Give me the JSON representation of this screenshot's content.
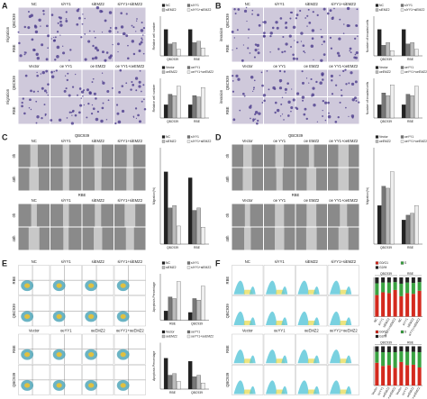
{
  "panels": [
    {
      "label": "A",
      "kind": "transwell",
      "blocks": [
        {
          "columns": [
            "NC",
            "siYY1",
            "siEMZ2",
            "siYY1+siEMZ2"
          ],
          "rows": [
            "QBC939",
            "RBE"
          ],
          "side": "migration"
        },
        {
          "columns": [
            "Vector",
            "oe YY1",
            "oe EMZ2",
            "oe YY1+oeEMZ2"
          ],
          "rows": [
            "QBC939",
            "RBE"
          ],
          "side": "migration"
        }
      ],
      "charts": [
        {
          "type": "bar",
          "ylabel": "Relative cell number",
          "categories": [
            "QBC939",
            "RBE"
          ],
          "ylim": [
            0,
            1.5
          ],
          "series": [
            {
              "name": "NC",
              "color": "#222222",
              "values": [
                1,
                1
              ]
            },
            {
              "name": "siYY1",
              "color": "#777777",
              "values": [
                0.45,
                0.5
              ]
            },
            {
              "name": "siEMZ2",
              "color": "#bbbbbb",
              "values": [
                0.5,
                0.55
              ]
            },
            {
              "name": "siYY1+siEMZ2",
              "color": "#eeeeee",
              "values": [
                0.25,
                0.3
              ]
            }
          ]
        },
        {
          "type": "bar",
          "ylabel": "Relative cell number",
          "categories": [
            "QBC939",
            "RBE"
          ],
          "ylim": [
            0,
            3
          ],
          "series": [
            {
              "name": "Vector",
              "color": "#222222",
              "values": [
                1,
                1
              ]
            },
            {
              "name": "oeYY1",
              "color": "#777777",
              "values": [
                1.8,
                1.7
              ]
            },
            {
              "name": "oeEMZ2",
              "color": "#bbbbbb",
              "values": [
                1.7,
                1.6
              ]
            },
            {
              "name": "oeYY1+oeEMZ2",
              "color": "#eeeeee",
              "values": [
                2.4,
                2.3
              ]
            }
          ]
        }
      ]
    },
    {
      "label": "B",
      "kind": "transwell",
      "blocks": [
        {
          "columns": [
            "NC",
            "siYY1",
            "siEMZ2",
            "siYY1+siEMZ2"
          ],
          "rows": [
            "QBC939",
            "RBE"
          ],
          "side": "invasion"
        },
        {
          "columns": [
            "Vector",
            "oe YY1",
            "oe EMZ2",
            "oe YY1+oeEMZ2"
          ],
          "rows": [
            "QBC939",
            "RBE"
          ],
          "side": "invasion"
        }
      ],
      "charts": [
        {
          "type": "bar",
          "ylabel": "Number of invaded cells",
          "categories": [
            "QBC939",
            "RBE"
          ],
          "ylim": [
            0,
            1.5
          ],
          "series": [
            {
              "name": "NC",
              "color": "#222222",
              "values": [
                1,
                1
              ]
            },
            {
              "name": "siYY1",
              "color": "#777777",
              "values": [
                0.4,
                0.45
              ]
            },
            {
              "name": "siEMZ2",
              "color": "#bbbbbb",
              "values": [
                0.5,
                0.5
              ]
            },
            {
              "name": "siYY1+siEMZ2",
              "color": "#eeeeee",
              "values": [
                0.2,
                0.25
              ]
            }
          ]
        },
        {
          "type": "bar",
          "ylabel": "Number of invaded cells",
          "categories": [
            "QBC939",
            "RBE"
          ],
          "ylim": [
            0,
            3
          ],
          "series": [
            {
              "name": "Vector",
              "color": "#222222",
              "values": [
                1,
                1
              ]
            },
            {
              "name": "oeYY1",
              "color": "#777777",
              "values": [
                1.9,
                1.8
              ]
            },
            {
              "name": "oeEMZ2",
              "color": "#bbbbbb",
              "values": [
                1.7,
                1.7
              ]
            },
            {
              "name": "oeYY1+oeEMZ2",
              "color": "#eeeeee",
              "values": [
                2.5,
                2.4
              ]
            }
          ]
        }
      ]
    },
    {
      "label": "C",
      "kind": "scratch",
      "blocks": [
        {
          "title": "QBC939",
          "columns": [
            "NC",
            "siYY1",
            "siEMZ2",
            "siYY1+siEMZ2"
          ],
          "rows": [
            "0h",
            "48h"
          ]
        },
        {
          "title": "RBE",
          "columns": [
            "NC",
            "siYY1",
            "siEMZ2",
            "siYY1+siEMZ2"
          ],
          "rows": [
            "0h",
            "48h"
          ]
        }
      ],
      "charts": [
        {
          "type": "bar",
          "ylabel": "Migration(%)",
          "categories": [
            "QBC939",
            "RBE"
          ],
          "ylim": [
            0,
            80
          ],
          "series": [
            {
              "name": "NC",
              "color": "#222222",
              "values": [
                60,
                55
              ]
            },
            {
              "name": "siYY1",
              "color": "#777777",
              "values": [
                30,
                28
              ]
            },
            {
              "name": "siEMZ2",
              "color": "#bbbbbb",
              "values": [
                32,
                30
              ]
            },
            {
              "name": "siYY1+siEMZ2",
              "color": "#eeeeee",
              "values": [
                15,
                14
              ]
            }
          ]
        }
      ]
    },
    {
      "label": "D",
      "kind": "scratch",
      "blocks": [
        {
          "title": "QBC939",
          "columns": [
            "Vector",
            "oe YY1",
            "oe EMZ2",
            "oe YY1+oeEMZ2"
          ],
          "rows": [
            "0h",
            "48h"
          ]
        },
        {
          "title": "RBE",
          "columns": [
            "Vector",
            "oe YY1",
            "oe EMZ2",
            "oe YY1+oeEMZ2"
          ],
          "rows": [
            "0h",
            "48h"
          ]
        }
      ],
      "charts": [
        {
          "type": "bar",
          "ylabel": "Migration(%)",
          "categories": [
            "QBC939",
            "RBE"
          ],
          "ylim": [
            0,
            100
          ],
          "series": [
            {
              "name": "Vector",
              "color": "#222222",
              "values": [
                40,
                25
              ]
            },
            {
              "name": "oeYY1",
              "color": "#777777",
              "values": [
                60,
                30
              ]
            },
            {
              "name": "oeEMZ2",
              "color": "#bbbbbb",
              "values": [
                58,
                32
              ]
            },
            {
              "name": "oeYY1+oeEMZ2",
              "color": "#eeeeee",
              "values": [
                75,
                40
              ]
            }
          ]
        }
      ]
    },
    {
      "label": "E",
      "kind": "flow",
      "blocks": [
        {
          "columns": [
            "NC",
            "siYY1",
            "siEMZ2",
            "siYY1+siEMZ2"
          ],
          "rows": [
            "RBE",
            "QBC939"
          ]
        },
        {
          "columns": [
            "Vector",
            "oeYY1",
            "oeEMZ2",
            "oeYY1+oeEMZ2"
          ],
          "rows": [
            "RBE",
            "QBC939"
          ]
        }
      ],
      "charts": [
        {
          "type": "bar",
          "ylabel": "Apoptosis Percentage",
          "categories": [
            "RBE",
            "QBC939"
          ],
          "ylim": [
            0,
            30
          ],
          "series": [
            {
              "name": "NC",
              "color": "#222222",
              "values": [
                6,
                5
              ]
            },
            {
              "name": "siYY1",
              "color": "#777777",
              "values": [
                15,
                14
              ]
            },
            {
              "name": "siEMZ2",
              "color": "#bbbbbb",
              "values": [
                14,
                13
              ]
            },
            {
              "name": "siYY1+siEMZ2",
              "color": "#eeeeee",
              "values": [
                25,
                22
              ]
            }
          ]
        },
        {
          "type": "bar",
          "ylabel": "Apoptosis Percentage",
          "categories": [
            "RBE",
            "QBC939"
          ],
          "ylim": [
            0,
            30
          ],
          "series": [
            {
              "name": "Vector",
              "color": "#222222",
              "values": [
                20,
                18
              ]
            },
            {
              "name": "oeYY1",
              "color": "#777777",
              "values": [
                9,
                8
              ]
            },
            {
              "name": "oeEMZ2",
              "color": "#bbbbbb",
              "values": [
                10,
                9
              ]
            },
            {
              "name": "oeYY1+oeEMZ2",
              "color": "#eeeeee",
              "values": [
                5,
                4
              ]
            }
          ]
        }
      ]
    },
    {
      "label": "F",
      "kind": "hist",
      "blocks": [
        {
          "columns": [
            "NC",
            "siYY1",
            "siEMZ2",
            "siYY1+siEMZ2"
          ],
          "rows": [
            "RBE",
            "QBC939"
          ]
        },
        {
          "columns": [
            "Vector",
            "oeYY1",
            "oeEMZ2",
            "oeYY1+oeEMZ2"
          ],
          "rows": [
            "RBE",
            "QBC939"
          ]
        }
      ],
      "charts": [
        {
          "type": "stacked_bar",
          "groups": [
            "QBC939",
            "RBE"
          ],
          "categories": [
            "NC",
            "siYY1",
            "siEMZ2",
            "siYY1+siEMZ2",
            "NC",
            "siYY1",
            "siEMZ2",
            "siYY1+siEMZ2"
          ],
          "ylim": [
            0,
            100
          ],
          "series": [
            {
              "name": "G0/G1",
              "color": "#d42a1e",
              "values": [
                55,
                62,
                60,
                68,
                52,
                60,
                58,
                66
              ]
            },
            {
              "name": "S",
              "color": "#3aa241",
              "values": [
                30,
                25,
                27,
                20,
                32,
                27,
                28,
                22
              ]
            },
            {
              "name": "G2/M",
              "color": "#222222",
              "values": [
                15,
                13,
                13,
                12,
                16,
                13,
                14,
                12
              ]
            }
          ]
        },
        {
          "type": "stacked_bar",
          "groups": [
            "QBC939",
            "RBE"
          ],
          "categories": [
            "Vector",
            "oeYY1",
            "oeEMZ2",
            "oeYY1+oeEMZ2",
            "Vector",
            "oeYY1",
            "oeEMZ2",
            "oeYY1+oeEMZ2"
          ],
          "ylim": [
            0,
            100
          ],
          "series": [
            {
              "name": "G0/G1",
              "color": "#d42a1e",
              "values": [
                58,
                50,
                52,
                45,
                60,
                52,
                53,
                46
              ]
            },
            {
              "name": "S",
              "color": "#3aa241",
              "values": [
                28,
                35,
                33,
                40,
                27,
                34,
                33,
                39
              ]
            },
            {
              "name": "G2/M",
              "color": "#222222",
              "values": [
                14,
                15,
                15,
                15,
                13,
                14,
                14,
                15
              ]
            }
          ]
        }
      ]
    }
  ]
}
